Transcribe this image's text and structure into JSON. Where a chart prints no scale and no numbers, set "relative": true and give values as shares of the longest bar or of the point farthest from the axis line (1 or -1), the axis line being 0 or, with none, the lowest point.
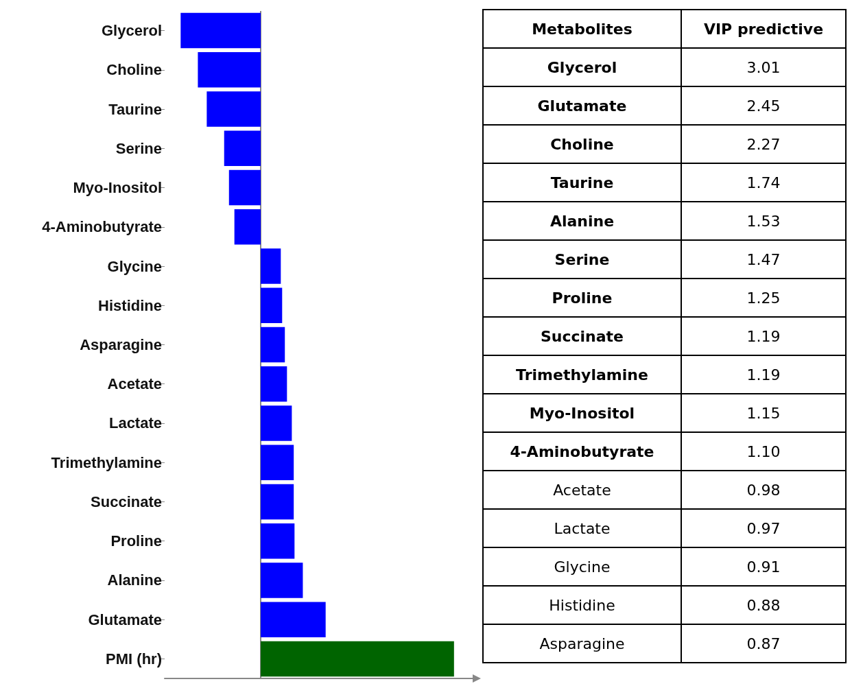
{
  "chart_data": [
    {
      "type": "bar",
      "orientation": "horizontal",
      "relative": true,
      "categories": [
        "Glycerol",
        "Choline",
        "Taurine",
        "Serine",
        "Myo-Inositol",
        "4-Aminobutyrate",
        "Glycine",
        "Histidine",
        "Asparagine",
        "Acetate",
        "Lactate",
        "Trimethylamine",
        "Succinate",
        "Proline",
        "Alanine",
        "Glutamate",
        "PMI (hr)"
      ],
      "values": [
        -0.414,
        -0.325,
        -0.279,
        -0.189,
        -0.164,
        -0.136,
        0.104,
        0.111,
        0.125,
        0.136,
        0.161,
        0.171,
        0.171,
        0.175,
        0.218,
        0.336,
        1
      ],
      "colors": [
        "#0000ff",
        "#0000ff",
        "#0000ff",
        "#0000ff",
        "#0000ff",
        "#0000ff",
        "#0000ff",
        "#0000ff",
        "#0000ff",
        "#0000ff",
        "#0000ff",
        "#0000ff",
        "#0000ff",
        "#0000ff",
        "#0000ff",
        "#0000ff",
        "#006400"
      ],
      "grid": false
    },
    {
      "type": "other",
      "xlabel": "Metabolites",
      "ylabel": "VIP predictive",
      "categories": [
        "Glycerol",
        "Glutamate",
        "Choline",
        "Taurine",
        "Alanine",
        "Serine",
        "Proline",
        "Succinate",
        "Trimethylamine",
        "Myo-Inositol",
        "4-Aminobutyrate",
        "Acetate",
        "Lactate",
        "Glycine",
        "Histidine",
        "Asparagine"
      ],
      "values": [
        3.01,
        2.45,
        2.27,
        1.74,
        1.53,
        1.47,
        1.25,
        1.19,
        1.19,
        1.15,
        1.1,
        0.98,
        0.97,
        0.91,
        0.88,
        0.87
      ],
      "value_labels": [
        "3.01",
        "2.45",
        "2.27",
        "1.74",
        "1.53",
        "1.47",
        "1.25",
        "1.19",
        "1.19",
        "1.15",
        "1.10",
        "0.98",
        "0.97",
        "0.91",
        "0.88",
        "0.87"
      ],
      "data_labels": true
    }
  ]
}
